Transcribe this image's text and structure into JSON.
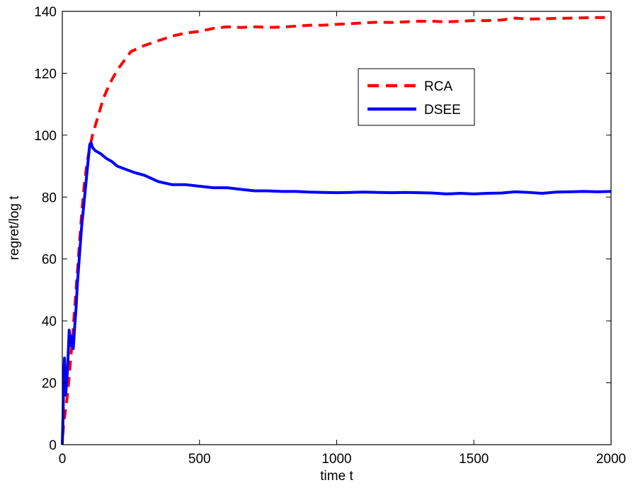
{
  "chart_data": {
    "type": "line",
    "title": "",
    "xlabel": "time t",
    "ylabel": "regret/log t",
    "xlim": [
      0,
      2000
    ],
    "ylim": [
      0,
      140
    ],
    "xticks": [
      0,
      500,
      1000,
      1500,
      2000
    ],
    "yticks": [
      0,
      20,
      40,
      60,
      80,
      100,
      120,
      140
    ],
    "grid": false,
    "legend_position": "upper-right-inset",
    "series": [
      {
        "name": "RCA",
        "color": "#ff0000",
        "style": "dashed",
        "x": [
          2,
          5,
          10,
          20,
          30,
          40,
          50,
          60,
          70,
          80,
          90,
          100,
          110,
          120,
          130,
          150,
          175,
          200,
          250,
          300,
          350,
          400,
          450,
          500,
          550,
          600,
          650,
          700,
          750,
          800,
          850,
          900,
          950,
          1000,
          1050,
          1100,
          1150,
          1200,
          1250,
          1300,
          1350,
          1400,
          1450,
          1500,
          1550,
          1600,
          1650,
          1700,
          1750,
          1800,
          1850,
          1900,
          1950,
          2000
        ],
        "y": [
          3,
          7,
          10,
          17,
          27,
          38,
          50,
          62,
          74,
          84,
          91,
          96,
          100,
          103,
          106,
          112,
          117,
          121,
          127,
          129,
          130.5,
          132,
          133,
          133.5,
          134.5,
          135,
          134.8,
          135,
          134.8,
          134.9,
          135.2,
          135.5,
          135.5,
          135.8,
          136,
          136.3,
          136.5,
          136.4,
          136.6,
          136.8,
          136.8,
          136.6,
          136.8,
          137,
          137,
          137.2,
          137.8,
          137.5,
          137.6,
          137.7,
          137.8,
          137.9,
          138,
          138
        ]
      },
      {
        "name": "DSEE",
        "color": "#0000ff",
        "style": "solid",
        "x": [
          0,
          3,
          5,
          8,
          12,
          16,
          20,
          25,
          30,
          35,
          40,
          45,
          50,
          55,
          60,
          70,
          80,
          90,
          100,
          105,
          110,
          120,
          140,
          160,
          180,
          200,
          230,
          260,
          300,
          350,
          400,
          450,
          500,
          550,
          600,
          650,
          700,
          750,
          800,
          850,
          900,
          950,
          1000,
          1050,
          1100,
          1150,
          1200,
          1250,
          1300,
          1350,
          1400,
          1450,
          1500,
          1550,
          1600,
          1650,
          1700,
          1750,
          1800,
          1850,
          1900,
          1950,
          2000
        ],
        "y": [
          0,
          10,
          22,
          28,
          16,
          20,
          26,
          37,
          32,
          35,
          31,
          38,
          44,
          52,
          58,
          70,
          79,
          88,
          97,
          97.5,
          96,
          95,
          94,
          92.5,
          91.5,
          90,
          89,
          88,
          87,
          85,
          84,
          84,
          83.5,
          83,
          83,
          82.5,
          82,
          82,
          81.8,
          81.8,
          81.6,
          81.5,
          81.4,
          81.5,
          81.6,
          81.5,
          81.4,
          81.5,
          81.4,
          81.3,
          81,
          81.2,
          81,
          81.2,
          81.3,
          81.7,
          81.5,
          81.2,
          81.6,
          81.7,
          81.8,
          81.7,
          81.8
        ]
      }
    ]
  }
}
